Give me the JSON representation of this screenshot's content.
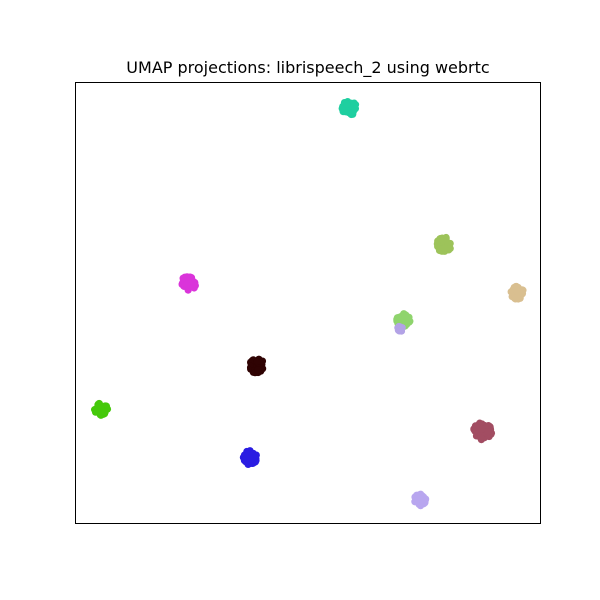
{
  "chart_data": {
    "type": "scatter",
    "title": "UMAP projections: librispeech_2 using webrtc",
    "xlabel": "",
    "ylabel": "",
    "xlim": [
      0,
      100
    ],
    "ylim": [
      0,
      100
    ],
    "grid": false,
    "ticks": false,
    "legend": "none",
    "clusters": [
      {
        "color": "#1fcfa0",
        "x": 58.9,
        "y": 94.1,
        "spread": 1.6
      },
      {
        "color": "#9dc35a",
        "x": 79.2,
        "y": 63.2,
        "spread": 1.6
      },
      {
        "color": "#d9bf90",
        "x": 94.9,
        "y": 52.3,
        "spread": 1.4
      },
      {
        "color": "#da34da",
        "x": 24.3,
        "y": 54.4,
        "spread": 1.6
      },
      {
        "color": "#8fd46d",
        "x": 70.5,
        "y": 46.1,
        "spread": 1.5
      },
      {
        "color": "#b3a3e6",
        "x": 69.7,
        "y": 44.1,
        "spread": 0.6
      },
      {
        "color": "#2f0303",
        "x": 39.0,
        "y": 35.8,
        "spread": 1.6
      },
      {
        "color": "#45c90b",
        "x": 5.6,
        "y": 25.9,
        "spread": 1.4
      },
      {
        "color": "#a24d62",
        "x": 87.5,
        "y": 21.0,
        "spread": 2.0
      },
      {
        "color": "#2a1ce2",
        "x": 37.6,
        "y": 15.0,
        "spread": 1.6
      },
      {
        "color": "#b8a6ef",
        "x": 74.0,
        "y": 5.4,
        "spread": 1.3
      }
    ]
  }
}
